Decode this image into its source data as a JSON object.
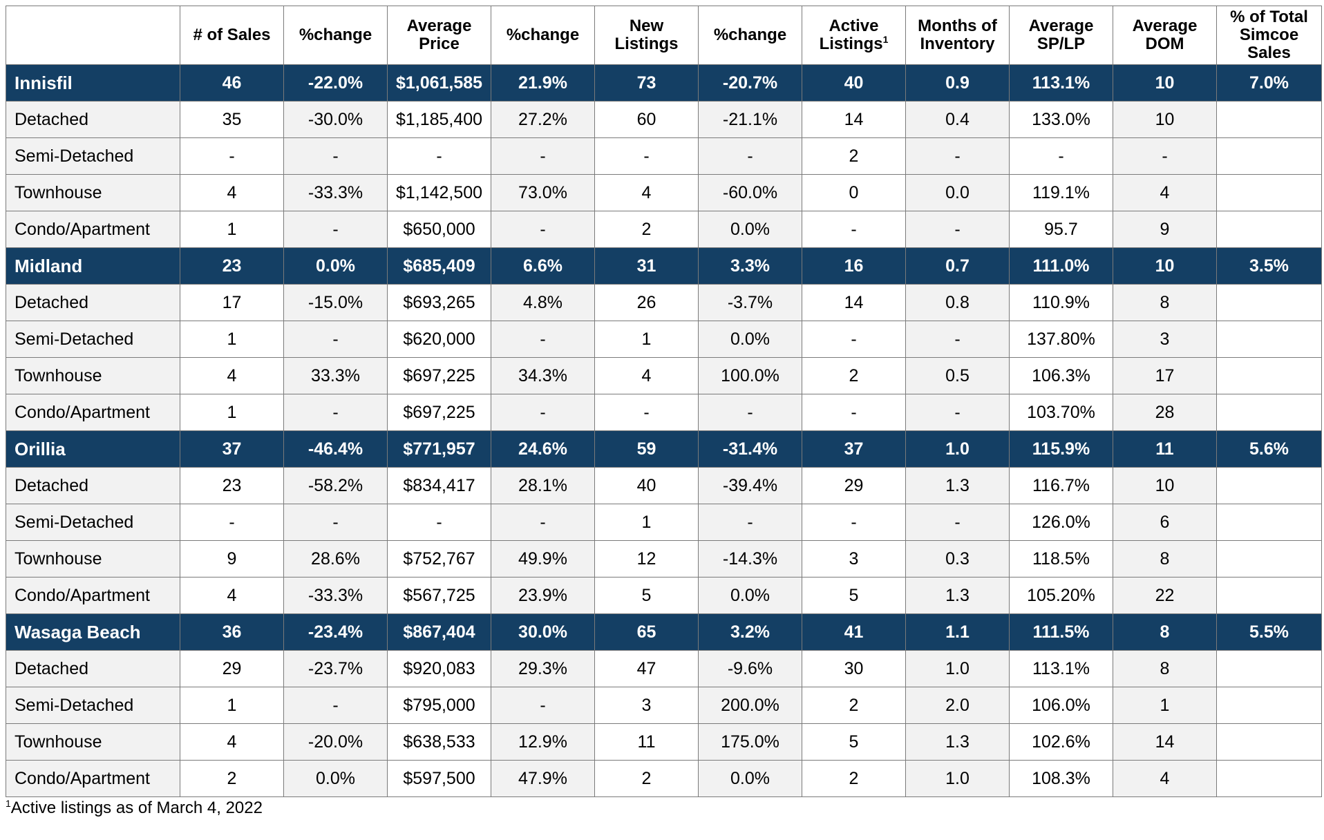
{
  "table": {
    "headers": [
      "",
      "# of Sales",
      "%change",
      "Average Price",
      "%change",
      "New Listings",
      "%change",
      "Active Listings",
      "Months of Inventory",
      "Average SP/LP",
      "Average DOM",
      "% of Total Simcoe Sales"
    ],
    "header_footnote_mark": "1",
    "regions": [
      {
        "row": [
          "Innisfil",
          "46",
          "-22.0%",
          "$1,061,585",
          "21.9%",
          "73",
          "-20.7%",
          "40",
          "0.9",
          "113.1%",
          "10",
          "7.0%"
        ],
        "subrows": [
          [
            "Detached",
            "35",
            "-30.0%",
            "$1,185,400",
            "27.2%",
            "60",
            "-21.1%",
            "14",
            "0.4",
            "133.0%",
            "10",
            ""
          ],
          [
            "Semi-Detached",
            "-",
            "-",
            "-",
            "-",
            "-",
            "-",
            "2",
            "-",
            "-",
            "-",
            ""
          ],
          [
            "Townhouse",
            "4",
            "-33.3%",
            "$1,142,500",
            "73.0%",
            "4",
            "-60.0%",
            "0",
            "0.0",
            "119.1%",
            "4",
            ""
          ],
          [
            "Condo/Apartment",
            "1",
            "-",
            "$650,000",
            "-",
            "2",
            "0.0%",
            "-",
            "-",
            "95.7",
            "9",
            ""
          ]
        ]
      },
      {
        "row": [
          "Midland",
          "23",
          "0.0%",
          "$685,409",
          "6.6%",
          "31",
          "3.3%",
          "16",
          "0.7",
          "111.0%",
          "10",
          "3.5%"
        ],
        "subrows": [
          [
            "Detached",
            "17",
            "-15.0%",
            "$693,265",
            "4.8%",
            "26",
            "-3.7%",
            "14",
            "0.8",
            "110.9%",
            "8",
            ""
          ],
          [
            "Semi-Detached",
            "1",
            "-",
            "$620,000",
            "-",
            "1",
            "0.0%",
            "-",
            "-",
            "137.80%",
            "3",
            ""
          ],
          [
            "Townhouse",
            "4",
            "33.3%",
            "$697,225",
            "34.3%",
            "4",
            "100.0%",
            "2",
            "0.5",
            "106.3%",
            "17",
            ""
          ],
          [
            "Condo/Apartment",
            "1",
            "-",
            "$697,225",
            "-",
            "-",
            "-",
            "-",
            "-",
            "103.70%",
            "28",
            ""
          ]
        ]
      },
      {
        "row": [
          "Orillia",
          "37",
          "-46.4%",
          "$771,957",
          "24.6%",
          "59",
          "-31.4%",
          "37",
          "1.0",
          "115.9%",
          "11",
          "5.6%"
        ],
        "subrows": [
          [
            "Detached",
            "23",
            "-58.2%",
            "$834,417",
            "28.1%",
            "40",
            "-39.4%",
            "29",
            "1.3",
            "116.7%",
            "10",
            ""
          ],
          [
            "Semi-Detached",
            "-",
            "-",
            "-",
            "-",
            "1",
            "-",
            "-",
            "-",
            "126.0%",
            "6",
            ""
          ],
          [
            "Townhouse",
            "9",
            "28.6%",
            "$752,767",
            "49.9%",
            "12",
            "-14.3%",
            "3",
            "0.3",
            "118.5%",
            "8",
            ""
          ],
          [
            "Condo/Apartment",
            "4",
            "-33.3%",
            "$567,725",
            "23.9%",
            "5",
            "0.0%",
            "5",
            "1.3",
            "105.20%",
            "22",
            ""
          ]
        ]
      },
      {
        "row": [
          "Wasaga Beach",
          "36",
          "-23.4%",
          "$867,404",
          "30.0%",
          "65",
          "3.2%",
          "41",
          "1.1",
          "111.5%",
          "8",
          "5.5%"
        ],
        "subrows": [
          [
            "Detached",
            "29",
            "-23.7%",
            "$920,083",
            "29.3%",
            "47",
            "-9.6%",
            "30",
            "1.0",
            "113.1%",
            "8",
            ""
          ],
          [
            "Semi-Detached",
            "1",
            "-",
            "$795,000",
            "-",
            "3",
            "200.0%",
            "2",
            "2.0",
            "106.0%",
            "1",
            ""
          ],
          [
            "Townhouse",
            "4",
            "-20.0%",
            "$638,533",
            "12.9%",
            "11",
            "175.0%",
            "5",
            "1.3",
            "102.6%",
            "14",
            ""
          ],
          [
            "Condo/Apartment",
            "2",
            "0.0%",
            "$597,500",
            "47.9%",
            "2",
            "0.0%",
            "2",
            "1.0",
            "108.3%",
            "4",
            ""
          ]
        ]
      }
    ]
  },
  "footnote": {
    "mark": "1",
    "text": "Active listings as of March 4, 2022"
  },
  "colors": {
    "region_row_bg": "#143f64",
    "alt_column_bg": "#f2f2f2"
  }
}
